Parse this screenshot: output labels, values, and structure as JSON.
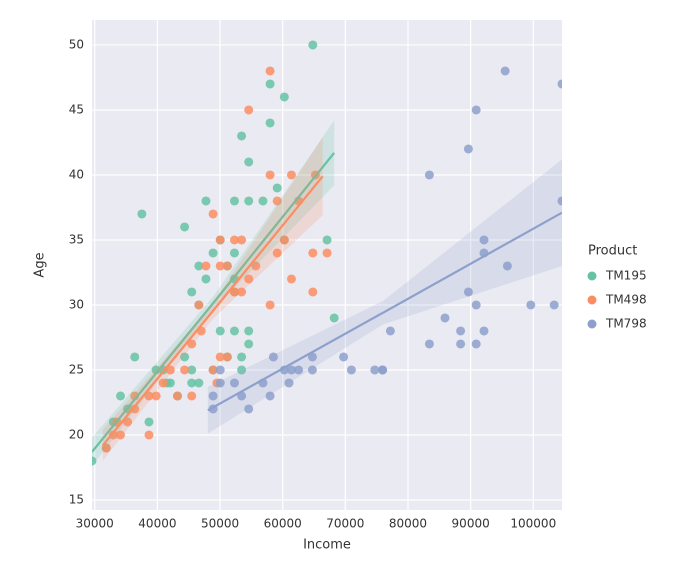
{
  "chart_data": {
    "type": "scatter",
    "x_label": "Income",
    "y_label": "Age",
    "legend_title": "Product",
    "legend": "outside right",
    "grid": true,
    "xlim": [
      29562,
      104581
    ],
    "ylim": [
      14.23,
      51.92
    ],
    "xticks": [
      30000,
      40000,
      50000,
      60000,
      70000,
      80000,
      90000,
      100000
    ],
    "yticks": [
      15,
      20,
      25,
      30,
      35,
      40,
      45,
      50
    ],
    "series": [
      {
        "name": "TM195",
        "color": "#66c2a5",
        "x": [
          29562,
          31836,
          32973,
          34110,
          35247,
          36384,
          37521,
          38658,
          39795,
          40932,
          41500,
          42069,
          43206,
          44343,
          45480,
          45480,
          46617,
          46617,
          47754,
          47754,
          48891,
          50028,
          50028,
          51165,
          52302,
          52302,
          52302,
          53439,
          53439,
          54576,
          54576,
          54576,
          54576,
          56850,
          57987,
          57987,
          59124,
          60261,
          60261,
          64809,
          67083,
          68220,
          46617,
          48891,
          51165,
          52302,
          53439,
          52302,
          45480,
          44343
        ],
        "values": [
          18,
          19,
          21,
          23,
          22,
          26,
          37,
          21,
          25,
          25,
          24,
          24,
          23,
          36,
          24,
          31,
          24,
          33,
          38,
          32,
          25,
          35,
          28,
          26,
          31,
          38,
          28,
          25,
          43,
          41,
          38,
          27,
          28,
          38,
          47,
          44,
          39,
          46,
          35,
          50,
          35,
          29,
          30,
          34,
          33,
          34,
          26,
          32,
          25,
          26
        ],
        "fit": {
          "x": [
            29562,
            49000,
            68220
          ],
          "y": [
            18.7,
            30.2,
            41.7
          ],
          "lower": [
            17.6,
            29.7,
            39.2
          ],
          "upper": [
            19.8,
            30.7,
            44.2
          ]
        }
      },
      {
        "name": "TM498",
        "color": "#fc8d62",
        "x": [
          31836,
          32973,
          33542,
          34110,
          35247,
          36384,
          36384,
          38658,
          38658,
          39795,
          40932,
          42069,
          43206,
          44343,
          45480,
          45480,
          46617,
          47754,
          48891,
          48891,
          50028,
          50028,
          50028,
          51165,
          51165,
          52302,
          52302,
          53439,
          53439,
          54576,
          54576,
          55713,
          57987,
          57987,
          57987,
          59124,
          59124,
          60261,
          61398,
          61398,
          62535,
          64809,
          64809,
          65220,
          67083,
          49500,
          47000
        ],
        "values": [
          19,
          20,
          21,
          20,
          21,
          22,
          23,
          20,
          23,
          23,
          24,
          25,
          23,
          25,
          27,
          23,
          30,
          33,
          37,
          25,
          33,
          35,
          26,
          33,
          26,
          35,
          31,
          35,
          31,
          45,
          32,
          33,
          30,
          40,
          48,
          38,
          34,
          35,
          40,
          32,
          38,
          34,
          31,
          40,
          34,
          24,
          28
        ],
        "fit": {
          "x": [
            31280,
            48800,
            66380
          ],
          "y": [
            19.2,
            29.5,
            39.9
          ],
          "lower": [
            18.0,
            28.9,
            36.9
          ],
          "upper": [
            20.4,
            30.1,
            42.9
          ]
        }
      },
      {
        "name": "TM798",
        "color": "#8da0cb",
        "x": [
          48891,
          48891,
          50028,
          50028,
          52302,
          53439,
          54576,
          56850,
          57987,
          58516,
          60261,
          61006,
          61398,
          62535,
          64741,
          64741,
          69721,
          70966,
          74701,
          75946,
          77191,
          83416,
          83416,
          85906,
          88396,
          88396,
          89641,
          89641,
          90886,
          90886,
          90886,
          92131,
          92131,
          92131,
          95508,
          95866,
          99601,
          103336,
          104581,
          104581,
          75946
        ],
        "values": [
          22,
          23,
          25,
          24,
          24,
          23,
          22,
          24,
          23,
          26,
          25,
          24,
          25,
          25,
          25,
          26,
          26,
          25,
          25,
          25,
          28,
          40,
          27,
          29,
          28,
          27,
          31,
          42,
          27,
          30,
          45,
          35,
          34,
          28,
          48,
          33,
          30,
          30,
          38,
          47,
          25
        ],
        "fit": {
          "x": [
            48050,
            76000,
            104581
          ],
          "y": [
            21.9,
            29.4,
            37.1
          ],
          "lower": [
            20.1,
            28.5,
            33.0
          ],
          "upper": [
            23.7,
            30.3,
            41.2
          ]
        }
      }
    ]
  }
}
